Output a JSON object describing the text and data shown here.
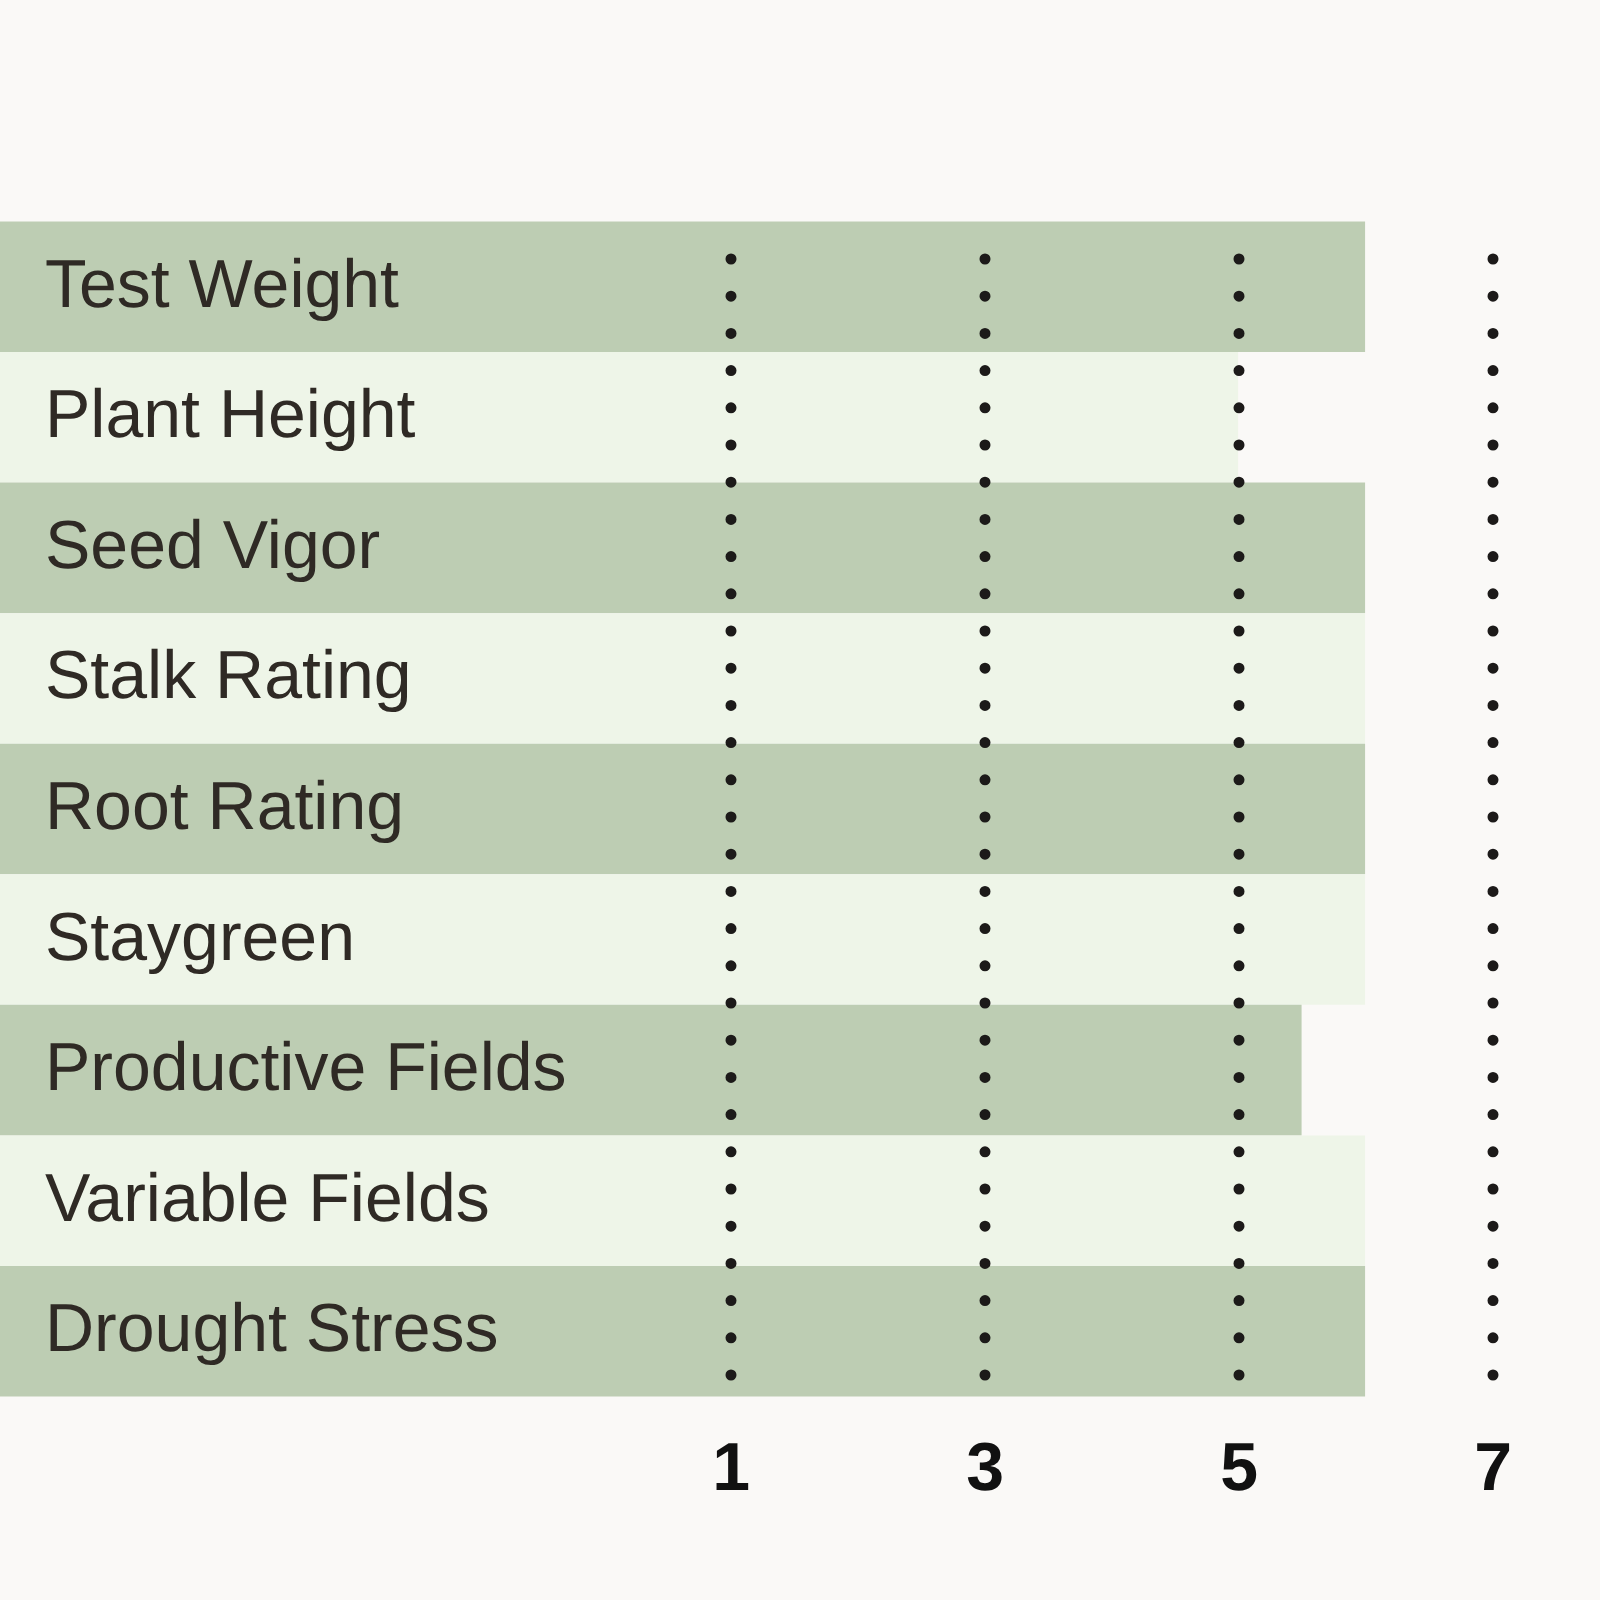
{
  "chart_data": {
    "type": "bar",
    "orientation": "horizontal",
    "categories": [
      "Test Weight",
      "Plant Height",
      "Seed Vigor",
      "Stalk Rating",
      "Root Rating",
      "Staygreen",
      "Productive Fields",
      "Variable Fields",
      "Drought Stress"
    ],
    "base": [
      -4.75,
      -4.75,
      -4.75,
      -4.75,
      -4.75,
      -4.75,
      -4.75,
      -4.75,
      -4.75
    ],
    "values": [
      10.75,
      9.75,
      10.75,
      10.75,
      10.75,
      10.75,
      10.25,
      10.75,
      10.75
    ],
    "colors": [
      "#bdcdb3",
      "#eef5e8",
      "#bdcdb3",
      "#eef5e8",
      "#bdcdb3",
      "#eef5e8",
      "#bdcdb3",
      "#eef5e8",
      "#bdcdb3"
    ],
    "xlim": [
      -4.75,
      7.85
    ],
    "xticks": [
      1,
      3,
      5,
      7
    ],
    "grid": "x"
  }
}
